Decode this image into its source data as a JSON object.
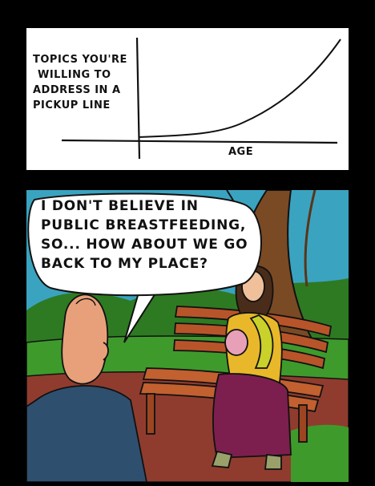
{
  "panel1": {
    "graph": {
      "y_label_lines": [
        "TOPICS YOU'RE",
        "WILLING TO",
        "ADDRESS IN A",
        "PICKUP LINE"
      ],
      "x_label": "AGE"
    }
  },
  "panel2": {
    "speech_lines": [
      "I DON'T BELIEVE IN",
      "PUBLIC BREASTFEEDING,",
      "SO... HOW ABOUT WE GO",
      "BACK TO MY PLACE?"
    ]
  },
  "colors": {
    "sky": "#3aa3c0",
    "grass": "#3f9a2c",
    "path": "#8f3c2e",
    "bench": "#b8542a",
    "tree": "#7a4a24",
    "man_skin": "#e8a07a",
    "man_jacket": "#2f4f6f",
    "woman_top": "#e8b82a",
    "woman_skirt": "#7c1f4e",
    "baby": "#e8a0b8"
  }
}
